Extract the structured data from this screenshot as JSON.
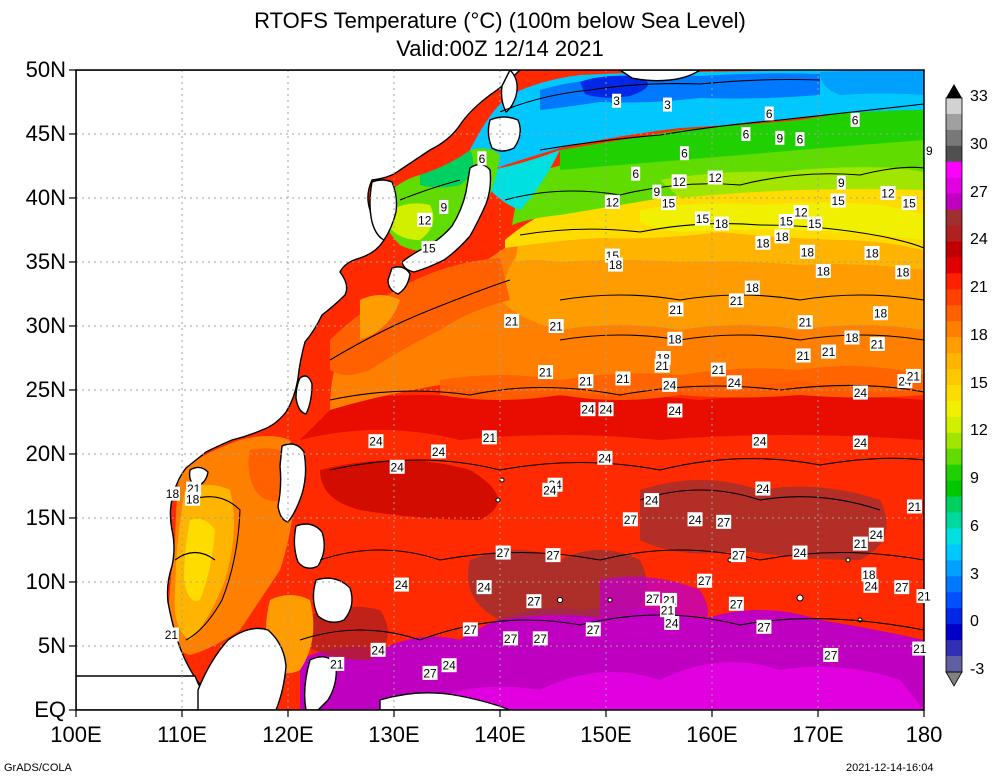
{
  "title": {
    "line1": "RTOFS Temperature (°C) (100m below Sea Level)",
    "line2": "Valid:00Z 12/14 2021"
  },
  "lat_ticks": [
    {
      "value": 50,
      "label": "50N"
    },
    {
      "value": 45,
      "label": "45N"
    },
    {
      "value": 40,
      "label": "40N"
    },
    {
      "value": 35,
      "label": "35N"
    },
    {
      "value": 30,
      "label": "30N"
    },
    {
      "value": 25,
      "label": "25N"
    },
    {
      "value": 20,
      "label": "20N"
    },
    {
      "value": 15,
      "label": "15N"
    },
    {
      "value": 10,
      "label": "10N"
    },
    {
      "value": 5,
      "label": "5N"
    },
    {
      "value": 0,
      "label": "EQ"
    }
  ],
  "lon_ticks": [
    {
      "value": 100,
      "label": "100E"
    },
    {
      "value": 110,
      "label": "110E"
    },
    {
      "value": 120,
      "label": "120E"
    },
    {
      "value": 130,
      "label": "130E"
    },
    {
      "value": 140,
      "label": "140E"
    },
    {
      "value": 150,
      "label": "150E"
    },
    {
      "value": 160,
      "label": "160E"
    },
    {
      "value": 170,
      "label": "170E"
    },
    {
      "value": 180,
      "label": "180"
    }
  ],
  "extent": {
    "lon": [
      100,
      180
    ],
    "lat": [
      0,
      50
    ]
  },
  "colorbar": {
    "labels": [
      "33",
      "30",
      "27",
      "24",
      "21",
      "18",
      "15",
      "12",
      "9",
      "6",
      "3",
      "0",
      "-3"
    ],
    "colors": [
      "#d2d2d2",
      "#a0a0a0",
      "#787878",
      "#505050",
      "#ff00ff",
      "#e000e0",
      "#c000c0",
      "#a03030",
      "#b02020",
      "#c00000",
      "#e00000",
      "#ff2000",
      "#ff4000",
      "#ff6000",
      "#ff8000",
      "#ff9c00",
      "#ffb400",
      "#ffc800",
      "#ffdc00",
      "#f0f000",
      "#d0f000",
      "#a0e600",
      "#60dc00",
      "#20d000",
      "#00c800",
      "#00d060",
      "#00d8a0",
      "#00e0e0",
      "#00c8ff",
      "#00a0ff",
      "#0078ff",
      "#0050ff",
      "#0028e6",
      "#0000c8",
      "#3030b4",
      "#6060a0"
    ],
    "top_arrow_color": "#000000",
    "bottom_arrow_color": "#808080"
  },
  "contour_labels": [
    {
      "text": "3",
      "lon": 151.0,
      "lat": 47.6
    },
    {
      "text": "3",
      "lon": 155.8,
      "lat": 47.3
    },
    {
      "text": "6",
      "lon": 165.4,
      "lat": 46.6
    },
    {
      "text": "6",
      "lon": 173.5,
      "lat": 46.1
    },
    {
      "text": "6",
      "lon": 163.2,
      "lat": 45.0
    },
    {
      "text": "9",
      "lon": 166.4,
      "lat": 44.7
    },
    {
      "text": "6",
      "lon": 168.3,
      "lat": 44.6
    },
    {
      "text": "9",
      "lon": 180.5,
      "lat": 43.7
    },
    {
      "text": "6",
      "lon": 138.3,
      "lat": 43.1
    },
    {
      "text": "6",
      "lon": 157.4,
      "lat": 43.5
    },
    {
      "text": "6",
      "lon": 152.8,
      "lat": 41.9
    },
    {
      "text": "12",
      "lon": 156.9,
      "lat": 41.3
    },
    {
      "text": "12",
      "lon": 160.3,
      "lat": 41.6
    },
    {
      "text": "9",
      "lon": 172.2,
      "lat": 41.2
    },
    {
      "text": "9",
      "lon": 154.8,
      "lat": 40.5
    },
    {
      "text": "12",
      "lon": 176.6,
      "lat": 40.4
    },
    {
      "text": "15",
      "lon": 171.9,
      "lat": 39.8
    },
    {
      "text": "12",
      "lon": 150.6,
      "lat": 39.7
    },
    {
      "text": "15",
      "lon": 155.9,
      "lat": 39.6
    },
    {
      "text": "15",
      "lon": 178.6,
      "lat": 39.6
    },
    {
      "text": "9",
      "lon": 134.7,
      "lat": 39.3
    },
    {
      "text": "12",
      "lon": 168.4,
      "lat": 38.9
    },
    {
      "text": "12",
      "lon": 132.9,
      "lat": 38.3
    },
    {
      "text": "15",
      "lon": 159.1,
      "lat": 38.4
    },
    {
      "text": "15",
      "lon": 167.0,
      "lat": 38.2
    },
    {
      "text": "18",
      "lon": 160.9,
      "lat": 38.0
    },
    {
      "text": "15",
      "lon": 169.7,
      "lat": 38.0
    },
    {
      "text": "18",
      "lon": 166.6,
      "lat": 37.0
    },
    {
      "text": "18",
      "lon": 164.8,
      "lat": 36.5
    },
    {
      "text": "15",
      "lon": 133.3,
      "lat": 36.1
    },
    {
      "text": "18",
      "lon": 169.0,
      "lat": 35.8
    },
    {
      "text": "18",
      "lon": 175.1,
      "lat": 35.7
    },
    {
      "text": "15",
      "lon": 150.6,
      "lat": 35.5
    },
    {
      "text": "18",
      "lon": 150.9,
      "lat": 34.8
    },
    {
      "text": "18",
      "lon": 170.5,
      "lat": 34.3
    },
    {
      "text": "18",
      "lon": 178.0,
      "lat": 34.2
    },
    {
      "text": "18",
      "lon": 163.8,
      "lat": 33.0
    },
    {
      "text": "21",
      "lon": 162.3,
      "lat": 32.0
    },
    {
      "text": "21",
      "lon": 156.6,
      "lat": 31.3
    },
    {
      "text": "18",
      "lon": 175.9,
      "lat": 31.0
    },
    {
      "text": "21",
      "lon": 141.1,
      "lat": 30.4
    },
    {
      "text": "21",
      "lon": 145.3,
      "lat": 30.0
    },
    {
      "text": "21",
      "lon": 168.8,
      "lat": 30.3
    },
    {
      "text": "18",
      "lon": 156.5,
      "lat": 29.0
    },
    {
      "text": "18",
      "lon": 173.2,
      "lat": 29.1
    },
    {
      "text": "21",
      "lon": 175.6,
      "lat": 28.6
    },
    {
      "text": "18",
      "lon": 155.4,
      "lat": 27.5
    },
    {
      "text": "21",
      "lon": 171.0,
      "lat": 28.0
    },
    {
      "text": "21",
      "lon": 168.6,
      "lat": 27.7
    },
    {
      "text": "21",
      "lon": 155.3,
      "lat": 26.9
    },
    {
      "text": "21",
      "lon": 144.3,
      "lat": 26.4
    },
    {
      "text": "21",
      "lon": 160.6,
      "lat": 26.6
    },
    {
      "text": "21",
      "lon": 148.1,
      "lat": 25.7
    },
    {
      "text": "21",
      "lon": 151.6,
      "lat": 25.9
    },
    {
      "text": "24",
      "lon": 156.0,
      "lat": 25.4
    },
    {
      "text": "24",
      "lon": 162.1,
      "lat": 25.6
    },
    {
      "text": "24",
      "lon": 178.2,
      "lat": 25.7
    },
    {
      "text": "21",
      "lon": 179.0,
      "lat": 26.1
    },
    {
      "text": "24",
      "lon": 174.0,
      "lat": 24.8
    },
    {
      "text": "24",
      "lon": 148.3,
      "lat": 23.5
    },
    {
      "text": "24",
      "lon": 150.0,
      "lat": 23.5
    },
    {
      "text": "24",
      "lon": 156.5,
      "lat": 23.4
    },
    {
      "text": "21",
      "lon": 139.0,
      "lat": 21.3
    },
    {
      "text": "24",
      "lon": 128.3,
      "lat": 21.0
    },
    {
      "text": "24",
      "lon": 134.2,
      "lat": 20.2
    },
    {
      "text": "24",
      "lon": 164.5,
      "lat": 21.0
    },
    {
      "text": "24",
      "lon": 174.0,
      "lat": 20.9
    },
    {
      "text": "24",
      "lon": 149.9,
      "lat": 19.7
    },
    {
      "text": "24",
      "lon": 130.3,
      "lat": 19.0
    },
    {
      "text": "24",
      "lon": 145.2,
      "lat": 17.6
    },
    {
      "text": "24",
      "lon": 144.7,
      "lat": 17.2
    },
    {
      "text": "24",
      "lon": 164.8,
      "lat": 17.3
    },
    {
      "text": "21",
      "lon": 111.1,
      "lat": 17.3
    },
    {
      "text": "18",
      "lon": 109.1,
      "lat": 16.9
    },
    {
      "text": "18",
      "lon": 111.0,
      "lat": 16.5
    },
    {
      "text": "24",
      "lon": 154.3,
      "lat": 16.4
    },
    {
      "text": "21",
      "lon": 179.1,
      "lat": 15.9
    },
    {
      "text": "27",
      "lon": 152.3,
      "lat": 14.9
    },
    {
      "text": "24",
      "lon": 158.4,
      "lat": 14.9
    },
    {
      "text": "27",
      "lon": 161.1,
      "lat": 14.7
    },
    {
      "text": "24",
      "lon": 175.5,
      "lat": 13.7
    },
    {
      "text": "21",
      "lon": 174.0,
      "lat": 13.0
    },
    {
      "text": "27",
      "lon": 140.3,
      "lat": 12.3
    },
    {
      "text": "27",
      "lon": 145.0,
      "lat": 12.1
    },
    {
      "text": "27",
      "lon": 162.5,
      "lat": 12.1
    },
    {
      "text": "24",
      "lon": 168.3,
      "lat": 12.3
    },
    {
      "text": "18",
      "lon": 174.8,
      "lat": 10.6
    },
    {
      "text": "24",
      "lon": 130.7,
      "lat": 9.8
    },
    {
      "text": "24",
      "lon": 138.5,
      "lat": 9.6
    },
    {
      "text": "27",
      "lon": 159.3,
      "lat": 10.1
    },
    {
      "text": "24",
      "lon": 175.0,
      "lat": 9.7
    },
    {
      "text": "27",
      "lon": 177.9,
      "lat": 9.6
    },
    {
      "text": "21",
      "lon": 180.0,
      "lat": 8.9
    },
    {
      "text": "27",
      "lon": 143.2,
      "lat": 8.5
    },
    {
      "text": "27",
      "lon": 154.4,
      "lat": 8.7
    },
    {
      "text": "21",
      "lon": 156.0,
      "lat": 8.6
    },
    {
      "text": "27",
      "lon": 162.3,
      "lat": 8.3
    },
    {
      "text": "21",
      "lon": 155.8,
      "lat": 7.8
    },
    {
      "text": "24",
      "lon": 156.2,
      "lat": 6.8
    },
    {
      "text": "27",
      "lon": 164.9,
      "lat": 6.5
    },
    {
      "text": "27",
      "lon": 137.2,
      "lat": 6.3
    },
    {
      "text": "27",
      "lon": 148.8,
      "lat": 6.3
    },
    {
      "text": "21",
      "lon": 109.0,
      "lat": 5.9
    },
    {
      "text": "27",
      "lon": 141.0,
      "lat": 5.6
    },
    {
      "text": "27",
      "lon": 143.8,
      "lat": 5.6
    },
    {
      "text": "24",
      "lon": 128.5,
      "lat": 4.7
    },
    {
      "text": "27",
      "lon": 171.2,
      "lat": 4.3
    },
    {
      "text": "21",
      "lon": 179.6,
      "lat": 4.8
    },
    {
      "text": "21",
      "lon": 124.6,
      "lat": 3.6
    },
    {
      "text": "24",
      "lon": 135.2,
      "lat": 3.5
    },
    {
      "text": "27",
      "lon": 133.4,
      "lat": 2.9
    }
  ],
  "footer": {
    "left": "GrADS/COLA",
    "right": "2021-12-14-16:04"
  }
}
